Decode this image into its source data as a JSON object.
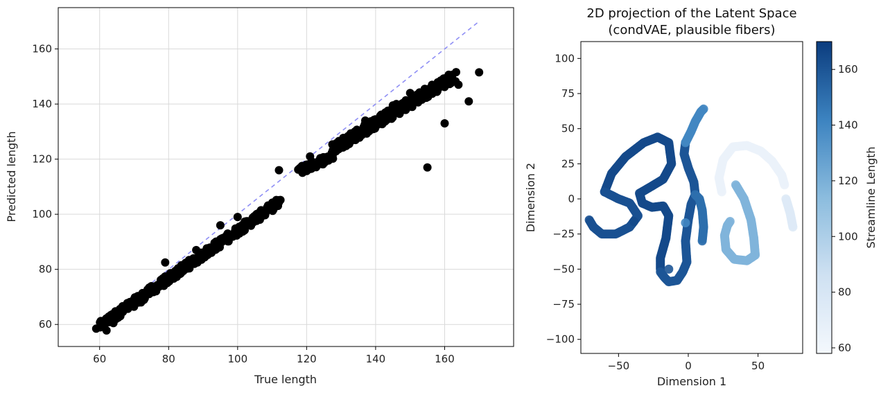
{
  "colors": {
    "point": "#000000",
    "ref_line": "#8f8ff5",
    "grid": "#d9d9d9",
    "cmap_low": "#f2f6fc",
    "cmap_high": "#08306b"
  },
  "chart_data": [
    {
      "type": "scatter",
      "title": "",
      "xlabel": "True length",
      "ylabel": "Predicted length",
      "xlim": [
        48,
        180
      ],
      "ylim": [
        52,
        175
      ],
      "xticks": [
        60,
        80,
        100,
        120,
        140,
        160
      ],
      "yticks": [
        60,
        80,
        100,
        120,
        140,
        160
      ],
      "grid": true,
      "reference_line": {
        "x": [
          58,
          170
        ],
        "y": [
          58,
          170
        ],
        "style": "dashed"
      },
      "segments": [
        {
          "x0": 60,
          "x1": 112,
          "slope": 0.865,
          "intercept": 7.5,
          "jitter": 1.6
        },
        {
          "x0": 118,
          "x1": 128,
          "slope": 0.55,
          "intercept": 51,
          "jitter": 1.5
        },
        {
          "x0": 128,
          "x1": 163,
          "slope": 0.74,
          "intercept": 29.5,
          "jitter": 2.0
        }
      ],
      "points": [
        [
          59,
          58.5
        ],
        [
          62,
          57.8
        ],
        [
          64,
          60.5
        ],
        [
          112,
          116
        ],
        [
          121,
          121
        ],
        [
          155,
          117
        ],
        [
          160,
          133
        ],
        [
          167,
          141
        ],
        [
          170,
          151.5
        ],
        [
          164,
          147
        ],
        [
          157,
          146.5
        ],
        [
          150,
          144
        ],
        [
          146,
          140
        ],
        [
          139,
          132
        ],
        [
          134,
          130
        ],
        [
          131,
          126.5
        ],
        [
          137,
          134
        ],
        [
          145,
          139.5
        ],
        [
          100,
          99
        ],
        [
          88,
          87
        ],
        [
          79,
          82.5
        ],
        [
          95,
          96
        ],
        [
          66,
          63
        ],
        [
          72,
          68
        ]
      ]
    },
    {
      "type": "scatter",
      "title": "2D projection of the Latent Space",
      "subtitle": "(condVAE, plausible fibers)",
      "xlabel": "Dimension 1",
      "ylabel": "Dimension 2",
      "xlim": [
        -77,
        82
      ],
      "ylim": [
        -110,
        112
      ],
      "xticks": [
        -50,
        0,
        50
      ],
      "yticks": [
        -100,
        -75,
        -50,
        -25,
        0,
        25,
        50,
        75,
        100
      ],
      "grid": false,
      "color_by": "Streamline Length",
      "colorbar": {
        "label": "Streamline Length",
        "range": [
          58,
          170
        ],
        "ticks": [
          60,
          80,
          100,
          120,
          140,
          160
        ]
      },
      "curves": [
        {
          "value": 165,
          "points": [
            [
              -60,
              5
            ],
            [
              -55,
              18
            ],
            [
              -45,
              30
            ],
            [
              -32,
              40
            ],
            [
              -22,
              44
            ],
            [
              -14,
              40
            ],
            [
              -12,
              25
            ],
            [
              -18,
              14
            ],
            [
              -28,
              8
            ],
            [
              -35,
              4
            ],
            [
              -33,
              -3
            ],
            [
              -26,
              -6
            ],
            [
              -18,
              -5
            ],
            [
              -14,
              -12
            ],
            [
              -16,
              -28
            ],
            [
              -20,
              -42
            ],
            [
              -20,
              -50
            ]
          ]
        },
        {
          "value": 162,
          "points": [
            [
              -60,
              5
            ],
            [
              -50,
              0
            ],
            [
              -42,
              -3
            ],
            [
              -36,
              -12
            ],
            [
              -42,
              -20
            ],
            [
              -52,
              -25
            ],
            [
              -62,
              -25
            ],
            [
              -68,
              -20
            ],
            [
              -71,
              -15
            ]
          ]
        },
        {
          "value": 160,
          "points": [
            [
              -20,
              -52
            ],
            [
              -17,
              -56
            ],
            [
              -14,
              -59
            ],
            [
              -8,
              -58
            ],
            [
              -4,
              -52
            ],
            [
              -1,
              -45
            ],
            [
              -2,
              -30
            ],
            [
              0,
              -15
            ],
            [
              2,
              -4
            ],
            [
              5,
              3
            ],
            [
              4,
              12
            ],
            [
              0,
              22
            ],
            [
              -3,
              32
            ],
            [
              -2,
              40
            ]
          ]
        },
        {
          "value": 140,
          "points": [
            [
              -2,
              40
            ],
            [
              2,
              48
            ],
            [
              5,
              55
            ],
            [
              9,
              62
            ],
            [
              11,
              64
            ]
          ]
        },
        {
          "value": 150,
          "points": [
            [
              5,
              3
            ],
            [
              8,
              0
            ],
            [
              10,
              -8
            ],
            [
              11,
              -20
            ],
            [
              10,
              -30
            ]
          ]
        },
        {
          "value": 65,
          "points": [
            [
              24,
              5
            ],
            [
              22,
              15
            ],
            [
              25,
              28
            ],
            [
              32,
              37
            ],
            [
              42,
              38
            ],
            [
              52,
              34
            ],
            [
              60,
              27
            ],
            [
              67,
              17
            ],
            [
              69,
              10
            ]
          ]
        },
        {
          "value": 75,
          "points": [
            [
              70,
              0
            ],
            [
              73,
              -10
            ],
            [
              75,
              -20
            ]
          ]
        },
        {
          "value": 118,
          "points": [
            [
              34,
              10
            ],
            [
              40,
              0
            ],
            [
              45,
              -15
            ],
            [
              47,
              -28
            ],
            [
              48,
              -40
            ],
            [
              42,
              -44
            ],
            [
              33,
              -43
            ],
            [
              27,
              -36
            ],
            [
              26,
              -26
            ],
            [
              28,
              -19
            ],
            [
              30,
              -16
            ]
          ]
        }
      ],
      "isolated_points": [
        {
          "x": -39,
          "y": -16,
          "value": 165
        },
        {
          "x": -14,
          "y": -50,
          "value": 160
        },
        {
          "x": -2,
          "y": -17,
          "value": 140
        }
      ]
    }
  ]
}
